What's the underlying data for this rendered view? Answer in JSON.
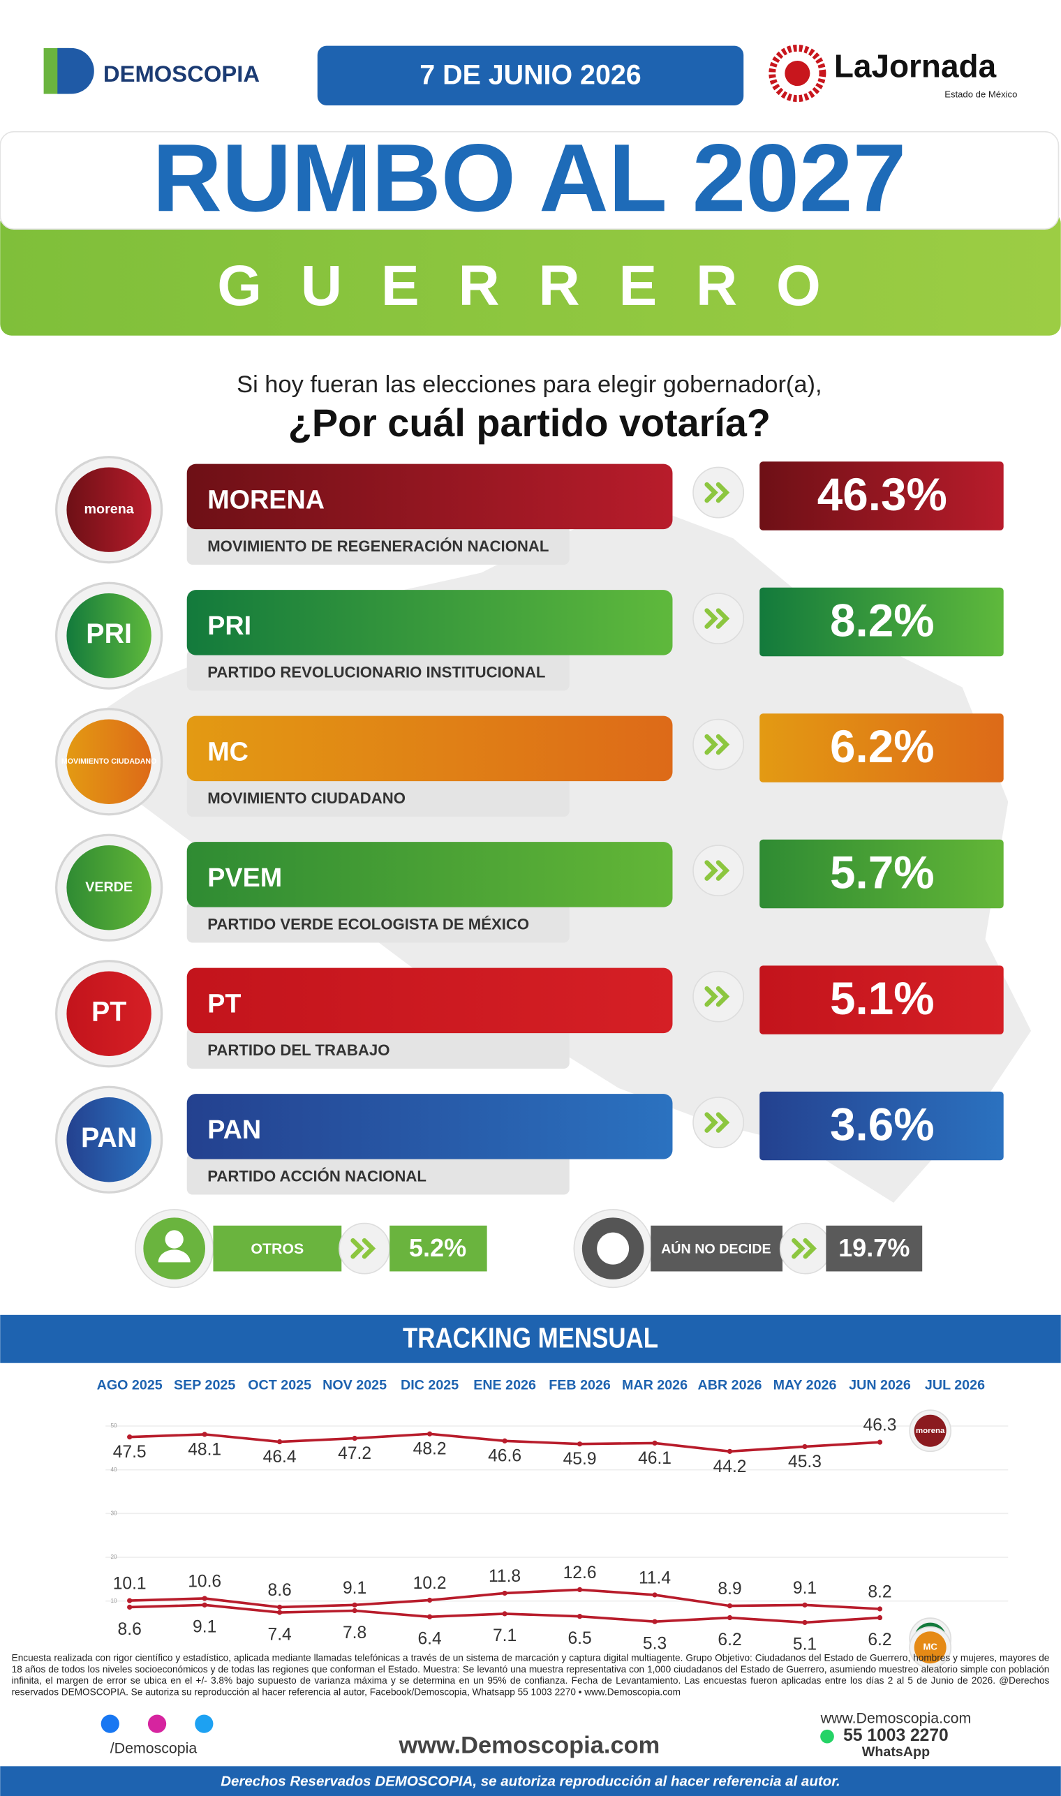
{
  "header": {
    "brand": "DEMOSCOPIA",
    "date": "7 DE JUNIO 2026",
    "newspaper": "LaJornada",
    "newspaper_sub": "Estado de México",
    "title": "RUMBO AL 2027",
    "state": "GUERRERO"
  },
  "question": {
    "line1": "Si hoy fueran las elecciones para elegir gobernador(a),",
    "line2": "¿Por cuál partido votaría?"
  },
  "parties": [
    {
      "logo": "morena",
      "name": "MORENA",
      "full_name": "MOVIMIENTO DE REGENERACIÓN NACIONAL",
      "value": "46.3%",
      "colors": [
        "#6e1016",
        "#b81c2b"
      ]
    },
    {
      "logo": "PRI",
      "name": "PRI",
      "full_name": "PARTIDO REVOLUCIONARIO INSTITUCIONAL",
      "value": "8.2%",
      "colors": [
        "#137a3c",
        "#5fb93c"
      ]
    },
    {
      "logo": "MOVIMIENTO CIUDADANO",
      "name": "MC",
      "full_name": "MOVIMIENTO CIUDADANO",
      "value": "6.2%",
      "colors": [
        "#e39a13",
        "#dd6a18"
      ]
    },
    {
      "logo": "VERDE",
      "name": "PVEM",
      "full_name": "PARTIDO VERDE ECOLOGISTA DE MÉXICO",
      "value": "5.7%",
      "colors": [
        "#2f8b33",
        "#63b637"
      ]
    },
    {
      "logo": "PT",
      "name": "PT",
      "full_name": "PARTIDO DEL TRABAJO",
      "value": "5.1%",
      "colors": [
        "#c3141c",
        "#d51f25"
      ]
    },
    {
      "logo": "PAN",
      "name": "PAN",
      "full_name": "PARTIDO ACCIÓN NACIONAL",
      "value": "3.6%",
      "colors": [
        "#24418f",
        "#2b72c0"
      ]
    }
  ],
  "others": {
    "label": "OTROS",
    "value": "5.2%"
  },
  "undecided": {
    "label": "AÚN NO DECIDE",
    "value": "19.7%"
  },
  "chart_data": {
    "type": "line",
    "title": "TRACKING MENSUAL",
    "categories": [
      "AGO 2025",
      "SEP 2025",
      "OCT 2025",
      "NOV 2025",
      "DIC 2025",
      "ENE 2026",
      "FEB 2026",
      "MAR 2026",
      "ABR 2026",
      "MAY 2026",
      "JUN 2026",
      "JUL 2026"
    ],
    "series": [
      {
        "name": "morena",
        "color": "#b81c2b",
        "values": [
          47.5,
          48.1,
          46.4,
          47.2,
          48.2,
          46.6,
          45.9,
          46.1,
          44.2,
          45.3,
          46.3,
          null
        ]
      },
      {
        "name": "PRI",
        "color": "#b81c2b",
        "values": [
          10.1,
          10.6,
          8.6,
          9.1,
          10.2,
          11.8,
          12.6,
          11.4,
          8.9,
          9.1,
          8.2,
          null
        ]
      },
      {
        "name": "MC",
        "color": "#b81c2b",
        "values": [
          8.6,
          9.1,
          7.4,
          7.8,
          6.4,
          7.1,
          6.5,
          5.3,
          6.2,
          5.1,
          6.2,
          null
        ]
      }
    ],
    "ylim": [
      0,
      50
    ],
    "yticks": [
      10,
      20,
      30,
      40,
      50
    ],
    "grid": true
  },
  "footer": {
    "note": "Encuesta realizada con rigor científico y estadístico, aplicada mediante llamadas telefónicas a través de un sistema de marcación y captura digital multiagente. Grupo Objetivo: Ciudadanos del Estado de Guerrero, hombres y mujeres, mayores de 18 años de todos los niveles socioeconómicos y de todas las regiones que conforman el Estado. Muestra: Se levantó una muestra representativa con 1,000 ciudadanos del Estado de Guerrero, asumiendo muestreo aleatorio simple con población infinita, el margen de error se ubica en el +/- 3.8% bajo supuesto de varianza máxima y se determina en un 95% de confianza. Fecha de Levantamiento. Las encuestas fueron aplicadas entre los días 2 al 5 de Junio de 2026. @Derechos reservados DEMOSCOPIA. Se autoriza su reproducción al hacer referencia al autor, Facebook/Demoscopia, Whatsapp 55 1003 2270 • www.Demoscopia.com",
    "social": "/Demoscopia",
    "website": "www.Demoscopia.com",
    "contact_web": "www.Demoscopia.com",
    "phone": "55 1003 2270",
    "whatsapp": "WhatsApp",
    "rights": "Derechos Reservados DEMOSCOPIA, se autoriza reproducción al hacer referencia al autor."
  }
}
